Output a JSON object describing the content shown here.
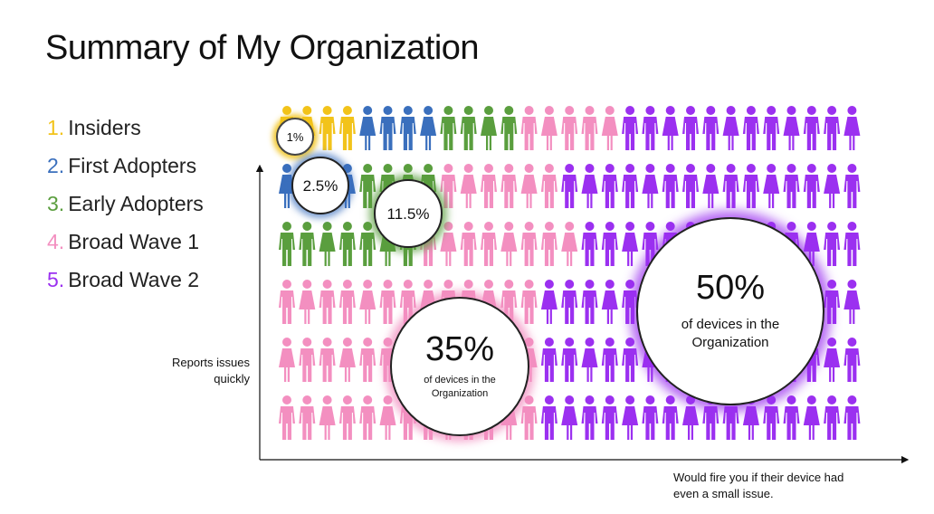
{
  "title": "Summary of My Organization",
  "legend": [
    {
      "num": "1.",
      "label": "Insiders",
      "color": "#f2c31a"
    },
    {
      "num": "2.",
      "label": "First Adopters",
      "color": "#3a6fbd"
    },
    {
      "num": "3.",
      "label": "Early Adopters",
      "color": "#5a9e3e"
    },
    {
      "num": "4.",
      "label": "Broad Wave 1",
      "color": "#f38fc0"
    },
    {
      "num": "5.",
      "label": "Broad Wave 2",
      "color": "#9b30f0"
    }
  ],
  "axes": {
    "y_label": "Reports issues quickly",
    "x_label": "Would fire you if their device had even a small issue."
  },
  "bubbles": [
    {
      "pct": "1%",
      "desc": ""
    },
    {
      "pct": "2.5%",
      "desc": ""
    },
    {
      "pct": "11.5%",
      "desc": ""
    },
    {
      "pct": "35%",
      "desc": "of devices in the Organization"
    },
    {
      "pct": "50%",
      "desc": "of devices in the Organization"
    }
  ],
  "chart_data": {
    "type": "pictograph",
    "series": [
      {
        "name": "Insiders",
        "value": 1
      },
      {
        "name": "First Adopters",
        "value": 2.5
      },
      {
        "name": "Early Adopters",
        "value": 11.5
      },
      {
        "name": "Broad Wave 1",
        "value": 35
      },
      {
        "name": "Broad Wave 2",
        "value": 50
      }
    ],
    "unit": "%"
  }
}
